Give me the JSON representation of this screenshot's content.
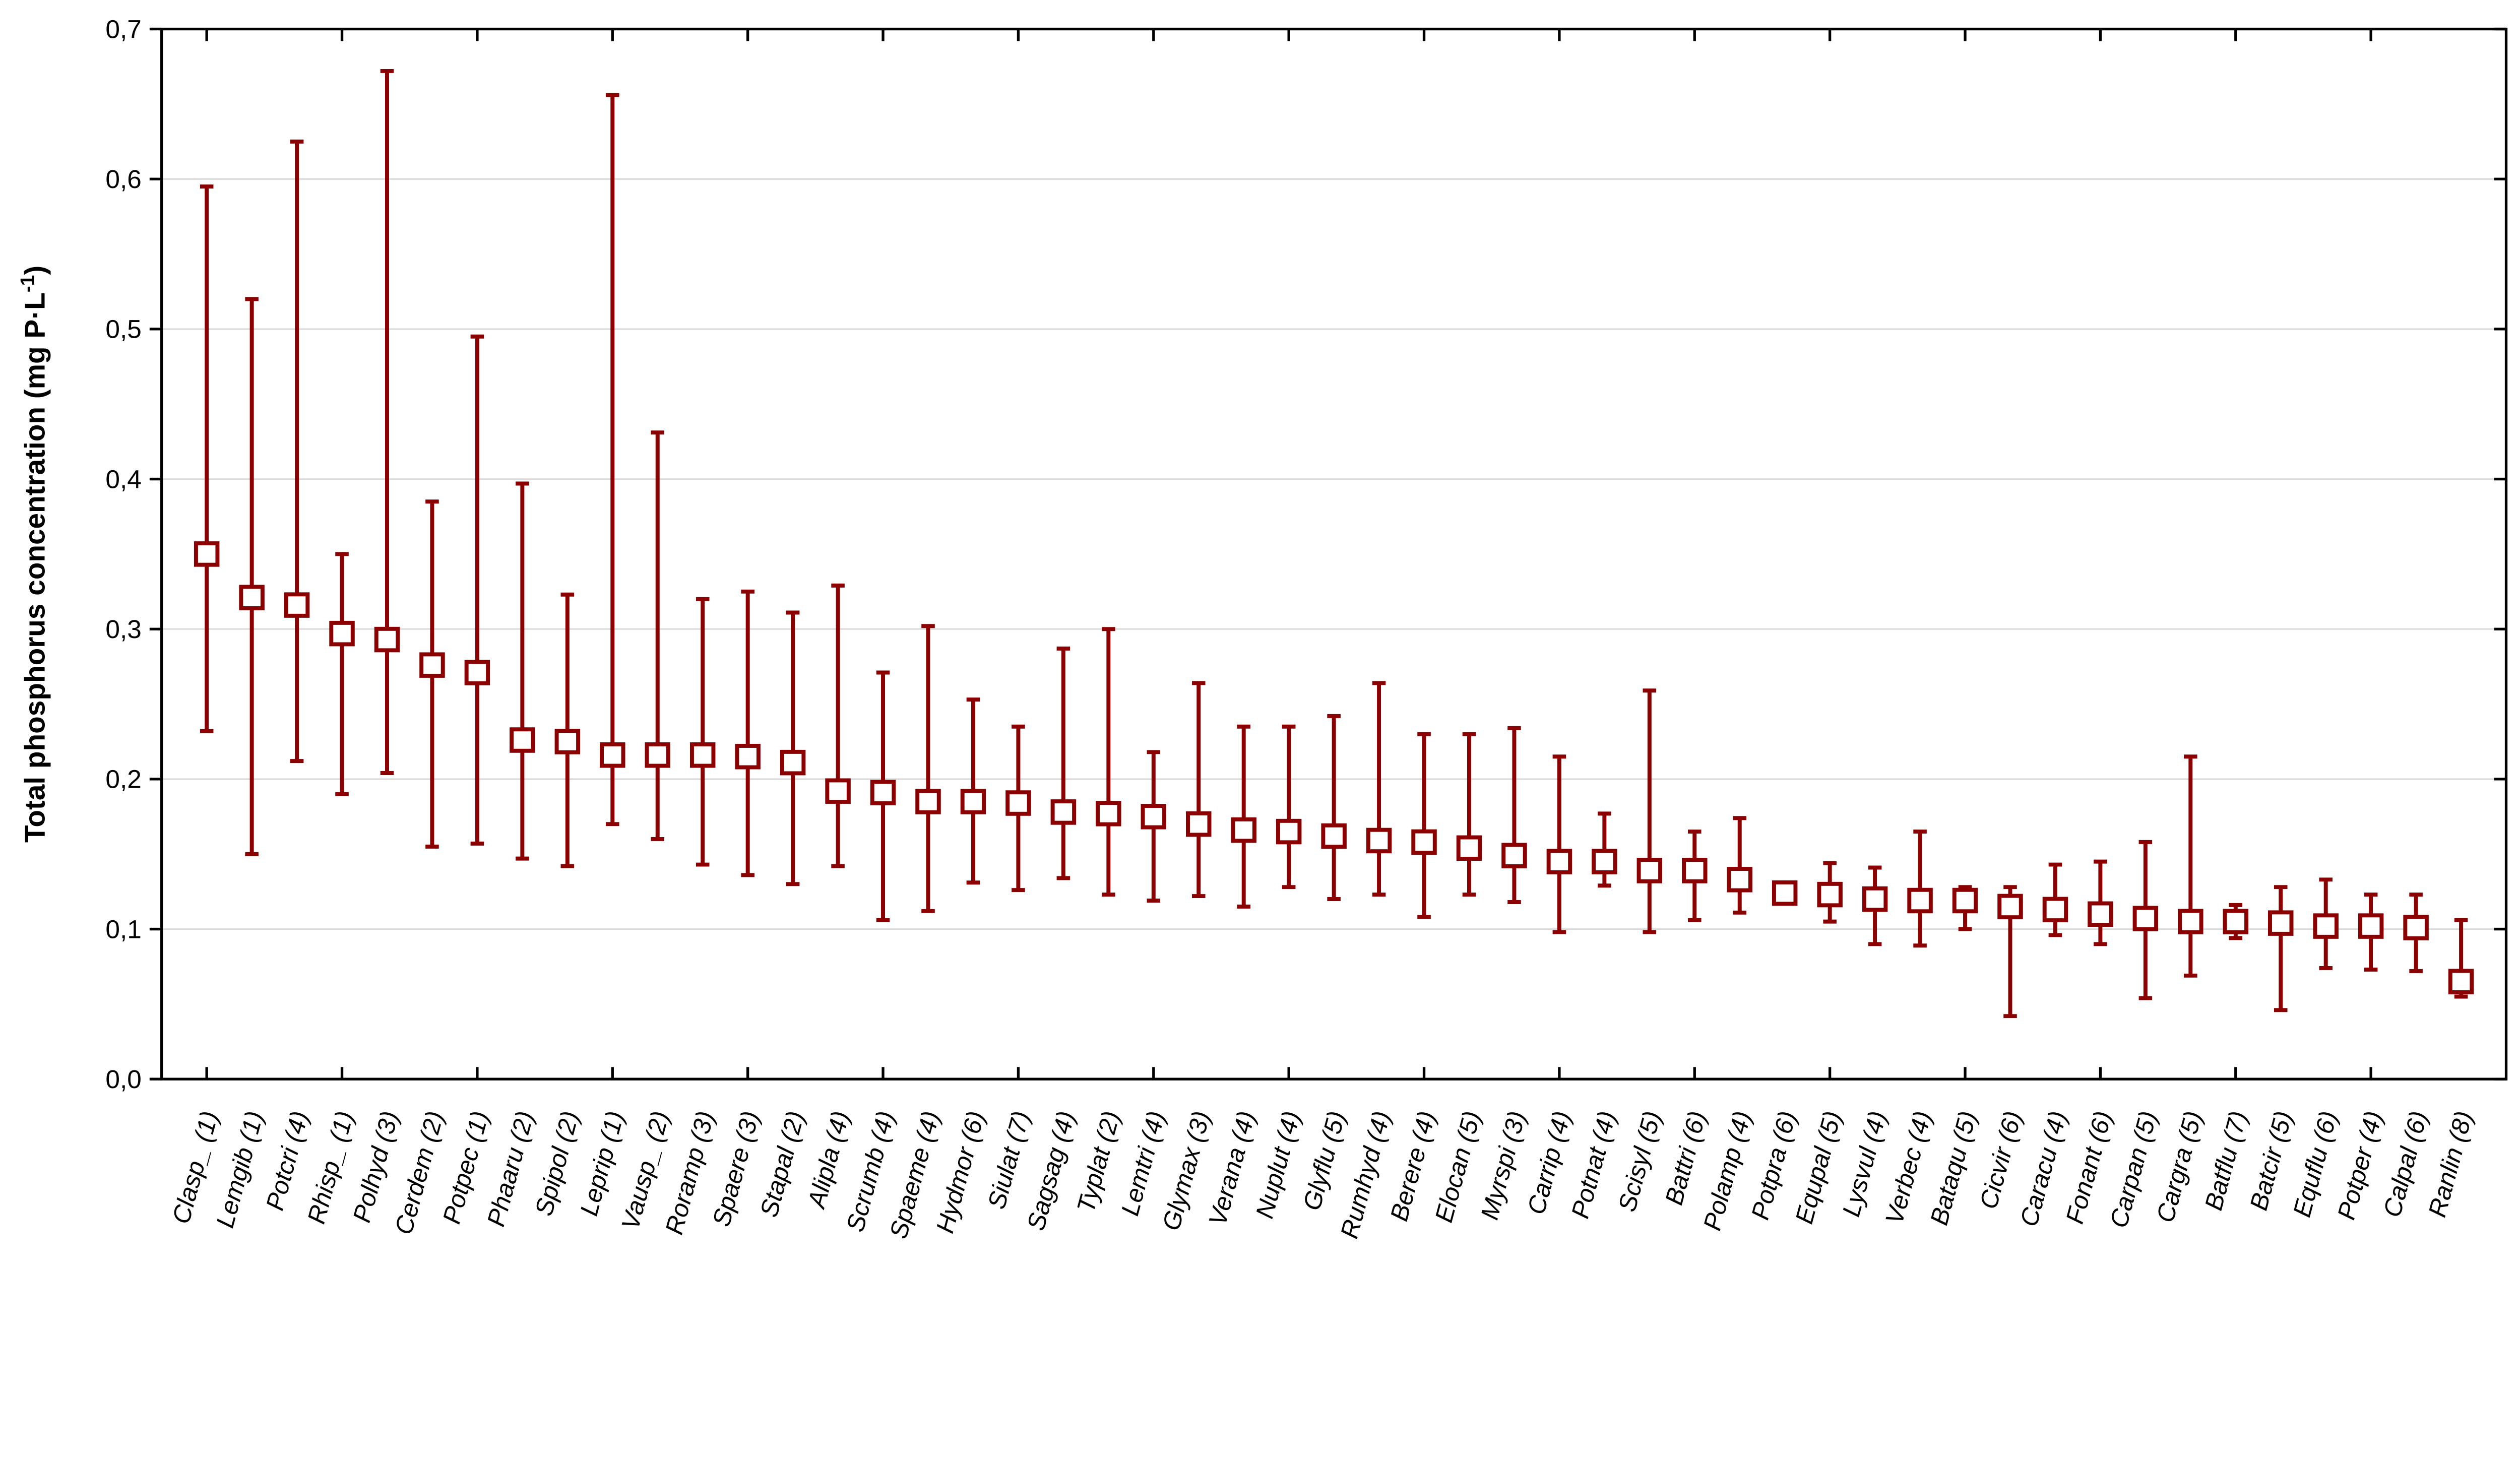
{
  "chart_data": {
    "type": "scatter",
    "subtype": "point-with-min-max-whiskers",
    "title": "",
    "xlabel": "",
    "ylabel": "Total phosphorus concentration (mg P·L",
    "ylabel_superscript": "-1",
    "ylabel_close": ")",
    "ylim": [
      0.0,
      0.7
    ],
    "ytick_step": 0.1,
    "ytick_labels": [
      "0,0",
      "0,1",
      "0,2",
      "0,3",
      "0,4",
      "0,5",
      "0,6",
      "0,7"
    ],
    "grid": "horizontal-on",
    "legend_position": "none",
    "decimal_separator": "comma",
    "colors": {
      "series": "#8B0000",
      "grid": "#D5D5D5",
      "axis": "#000000",
      "marker_fill": "#FFFFFF",
      "background": "#FFFFFF"
    },
    "x_major_tick_every_n_categories": 3,
    "points": [
      {
        "label": "Clasp_ (1)",
        "y": 0.35,
        "lo": 0.232,
        "hi": 0.595
      },
      {
        "label": "Lemgib (1)",
        "y": 0.321,
        "lo": 0.15,
        "hi": 0.52
      },
      {
        "label": "Potcri (4)",
        "y": 0.316,
        "lo": 0.212,
        "hi": 0.625
      },
      {
        "label": "Rhisp_ (1)",
        "y": 0.297,
        "lo": 0.19,
        "hi": 0.35
      },
      {
        "label": "Polhyd (3)",
        "y": 0.293,
        "lo": 0.204,
        "hi": 0.672
      },
      {
        "label": "Cerdem (2)",
        "y": 0.276,
        "lo": 0.155,
        "hi": 0.385
      },
      {
        "label": "Potpec (1)",
        "y": 0.271,
        "lo": 0.157,
        "hi": 0.495
      },
      {
        "label": "Phaaru (2)",
        "y": 0.226,
        "lo": 0.147,
        "hi": 0.397
      },
      {
        "label": "Spipol (2)",
        "y": 0.225,
        "lo": 0.142,
        "hi": 0.323
      },
      {
        "label": "Leprip (1)",
        "y": 0.216,
        "lo": 0.17,
        "hi": 0.656
      },
      {
        "label": "Vausp_ (2)",
        "y": 0.216,
        "lo": 0.16,
        "hi": 0.431
      },
      {
        "label": "Roramp (3)",
        "y": 0.216,
        "lo": 0.143,
        "hi": 0.32
      },
      {
        "label": "Spaere (3)",
        "y": 0.215,
        "lo": 0.136,
        "hi": 0.325
      },
      {
        "label": "Stapal (2)",
        "y": 0.211,
        "lo": 0.13,
        "hi": 0.311
      },
      {
        "label": "Alipla (4)",
        "y": 0.192,
        "lo": 0.142,
        "hi": 0.329
      },
      {
        "label": "Scrumb (4)",
        "y": 0.191,
        "lo": 0.106,
        "hi": 0.271
      },
      {
        "label": "Spaeme (4)",
        "y": 0.185,
        "lo": 0.112,
        "hi": 0.302
      },
      {
        "label": "Hydmor (6)",
        "y": 0.185,
        "lo": 0.131,
        "hi": 0.253
      },
      {
        "label": "Siulat (7)",
        "y": 0.184,
        "lo": 0.126,
        "hi": 0.235
      },
      {
        "label": "Sagsag (4)",
        "y": 0.178,
        "lo": 0.134,
        "hi": 0.287
      },
      {
        "label": "Typlat (2)",
        "y": 0.177,
        "lo": 0.123,
        "hi": 0.3
      },
      {
        "label": "Lemtri (4)",
        "y": 0.175,
        "lo": 0.119,
        "hi": 0.218
      },
      {
        "label": "Glymax (3)",
        "y": 0.17,
        "lo": 0.122,
        "hi": 0.264
      },
      {
        "label": "Verana (4)",
        "y": 0.166,
        "lo": 0.115,
        "hi": 0.235
      },
      {
        "label": "Nuplut (4)",
        "y": 0.165,
        "lo": 0.128,
        "hi": 0.235
      },
      {
        "label": "Glyflu (5)",
        "y": 0.162,
        "lo": 0.12,
        "hi": 0.242
      },
      {
        "label": "Rumhyd (4)",
        "y": 0.159,
        "lo": 0.123,
        "hi": 0.264
      },
      {
        "label": "Berere (4)",
        "y": 0.158,
        "lo": 0.108,
        "hi": 0.23
      },
      {
        "label": "Elocan (5)",
        "y": 0.154,
        "lo": 0.123,
        "hi": 0.23
      },
      {
        "label": "Myrspi (3)",
        "y": 0.149,
        "lo": 0.118,
        "hi": 0.234
      },
      {
        "label": "Carrip (4)",
        "y": 0.145,
        "lo": 0.098,
        "hi": 0.215
      },
      {
        "label": "Potnat (4)",
        "y": 0.145,
        "lo": 0.129,
        "hi": 0.177
      },
      {
        "label": "Scisyl (5)",
        "y": 0.139,
        "lo": 0.098,
        "hi": 0.259
      },
      {
        "label": "Battri (6)",
        "y": 0.139,
        "lo": 0.106,
        "hi": 0.165
      },
      {
        "label": "Polamp (4)",
        "y": 0.133,
        "lo": 0.111,
        "hi": 0.174
      },
      {
        "label": "Potpra (6)",
        "y": 0.124,
        "lo": 0.117,
        "hi": 0.13
      },
      {
        "label": "Equpal (5)",
        "y": 0.123,
        "lo": 0.105,
        "hi": 0.144
      },
      {
        "label": "Lysvul (4)",
        "y": 0.12,
        "lo": 0.09,
        "hi": 0.141
      },
      {
        "label": "Verbec (4)",
        "y": 0.119,
        "lo": 0.089,
        "hi": 0.165
      },
      {
        "label": "Bataqu (5)",
        "y": 0.119,
        "lo": 0.1,
        "hi": 0.128
      },
      {
        "label": "Cicvir (6)",
        "y": 0.115,
        "lo": 0.042,
        "hi": 0.128
      },
      {
        "label": "Caracu (4)",
        "y": 0.113,
        "lo": 0.096,
        "hi": 0.143
      },
      {
        "label": "Fonant (6)",
        "y": 0.11,
        "lo": 0.09,
        "hi": 0.145
      },
      {
        "label": "Carpan (5)",
        "y": 0.107,
        "lo": 0.054,
        "hi": 0.158
      },
      {
        "label": "Cargra (5)",
        "y": 0.105,
        "lo": 0.069,
        "hi": 0.215
      },
      {
        "label": "Batflu (7)",
        "y": 0.105,
        "lo": 0.094,
        "hi": 0.116
      },
      {
        "label": "Batcir (5)",
        "y": 0.104,
        "lo": 0.046,
        "hi": 0.128
      },
      {
        "label": "Equflu (6)",
        "y": 0.102,
        "lo": 0.074,
        "hi": 0.133
      },
      {
        "label": "Potper (4)",
        "y": 0.102,
        "lo": 0.073,
        "hi": 0.123
      },
      {
        "label": "Calpal (6)",
        "y": 0.101,
        "lo": 0.072,
        "hi": 0.123
      },
      {
        "label": "Ranlin (8)",
        "y": 0.065,
        "lo": 0.055,
        "hi": 0.106
      }
    ]
  }
}
